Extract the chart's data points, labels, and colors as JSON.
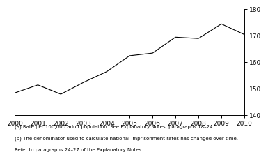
{
  "years": [
    2000,
    2001,
    2002,
    2003,
    2004,
    2005,
    2006,
    2007,
    2008,
    2009,
    2010
  ],
  "values": [
    148.5,
    151.5,
    148.0,
    152.5,
    156.5,
    162.5,
    163.5,
    169.5,
    169.0,
    174.5,
    170.5
  ],
  "ylim": [
    140,
    180
  ],
  "yticks": [
    140,
    150,
    160,
    170,
    180
  ],
  "xticks": [
    2000,
    2001,
    2002,
    2003,
    2004,
    2005,
    2006,
    2007,
    2008,
    2009,
    2010
  ],
  "line_color": "#000000",
  "line_width": 0.8,
  "footnote1": "(a) Rate per 100,000 adult population. See Explanatory Notes, paragraphs 18–24.",
  "footnote2": "(b) The denominator used to calculate national imprisonment rates has changed over time.",
  "footnote3": "Refer to paragraphs 24–27 of the Explanatory Notes.",
  "background_color": "#ffffff",
  "tick_fontsize": 6.5,
  "footnote_fontsize": 5.0
}
